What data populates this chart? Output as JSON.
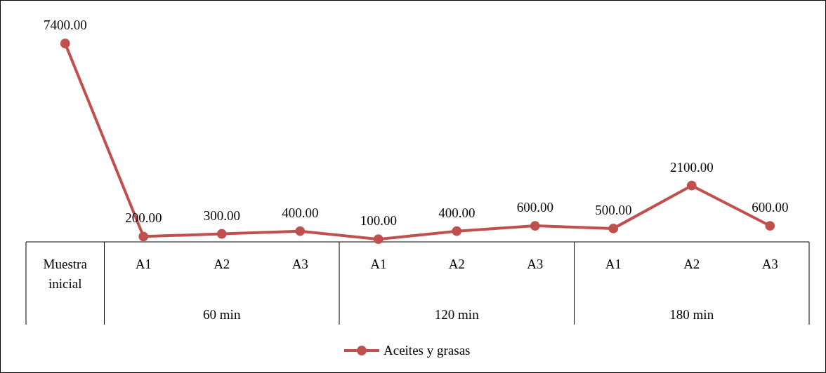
{
  "chart_data": {
    "type": "line",
    "relative": false,
    "categories": [
      "Muestra inicial",
      "A1",
      "A2",
      "A3",
      "A1",
      "A2",
      "A3",
      "A1",
      "A2",
      "A3"
    ],
    "series": [
      {
        "name": "Aceites y grasas",
        "color": "#c0504d",
        "values": [
          7400,
          200,
          300,
          400,
          100,
          400,
          600,
          500,
          2100,
          600
        ],
        "value_labels": [
          "7400.00",
          "200.00",
          "300.00",
          "400.00",
          "100.00",
          "400.00",
          "600.00",
          "500.00",
          "2100.00",
          "600.00"
        ]
      }
    ],
    "annotations": [
      "60 min",
      "120 min",
      "180 min"
    ],
    "marker": "circle",
    "legend": "bottom"
  }
}
